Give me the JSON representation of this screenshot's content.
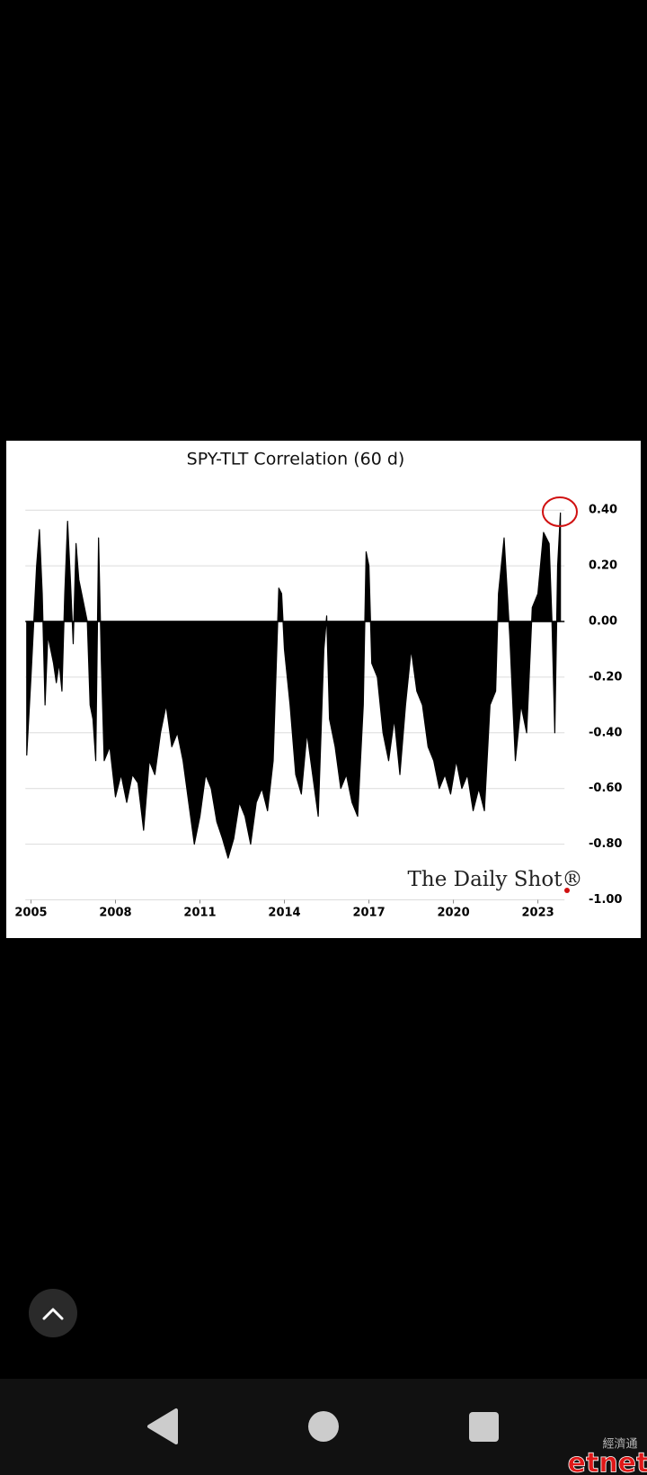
{
  "chart_data": {
    "type": "area",
    "title": "SPY-TLT Correlation (60 d)",
    "watermark": "The Daily Shot®",
    "color": "#000000",
    "grid": true,
    "x": [
      2004.85,
      2005.0,
      2005.1,
      2005.2,
      2005.3,
      2005.4,
      2005.5,
      2005.6,
      2005.7,
      2005.8,
      2005.9,
      2006.0,
      2006.1,
      2006.2,
      2006.3,
      2006.4,
      2006.5,
      2006.6,
      2006.7,
      2006.8,
      2006.9,
      2007.0,
      2007.1,
      2007.2,
      2007.3,
      2007.4,
      2007.5,
      2007.6,
      2007.8,
      2008.0,
      2008.2,
      2008.4,
      2008.6,
      2008.8,
      2009.0,
      2009.2,
      2009.4,
      2009.6,
      2009.8,
      2010.0,
      2010.2,
      2010.4,
      2010.6,
      2010.8,
      2011.0,
      2011.2,
      2011.4,
      2011.6,
      2011.8,
      2012.0,
      2012.2,
      2012.4,
      2012.6,
      2012.8,
      2013.0,
      2013.2,
      2013.4,
      2013.6,
      2013.8,
      2013.9,
      2014.0,
      2014.2,
      2014.4,
      2014.6,
      2014.8,
      2015.0,
      2015.2,
      2015.4,
      2015.5,
      2015.6,
      2015.8,
      2016.0,
      2016.2,
      2016.4,
      2016.6,
      2016.8,
      2016.9,
      2017.0,
      2017.1,
      2017.3,
      2017.5,
      2017.7,
      2017.9,
      2018.1,
      2018.3,
      2018.5,
      2018.7,
      2018.9,
      2019.1,
      2019.3,
      2019.5,
      2019.7,
      2019.9,
      2020.1,
      2020.3,
      2020.5,
      2020.7,
      2020.9,
      2021.1,
      2021.3,
      2021.5,
      2021.6,
      2021.8,
      2022.0,
      2022.2,
      2022.4,
      2022.6,
      2022.8,
      2023.0,
      2023.2,
      2023.4,
      2023.5,
      2023.6,
      2023.7,
      2023.8
    ],
    "values": [
      -0.48,
      -0.2,
      0.0,
      0.2,
      0.33,
      0.1,
      -0.3,
      -0.05,
      -0.1,
      -0.15,
      -0.22,
      -0.15,
      -0.25,
      0.1,
      0.36,
      0.15,
      -0.08,
      0.28,
      0.15,
      0.1,
      0.05,
      0.0,
      -0.3,
      -0.35,
      -0.5,
      0.3,
      -0.15,
      -0.5,
      -0.45,
      -0.63,
      -0.55,
      -0.65,
      -0.55,
      -0.58,
      -0.75,
      -0.5,
      -0.55,
      -0.4,
      -0.3,
      -0.45,
      -0.4,
      -0.5,
      -0.65,
      -0.8,
      -0.7,
      -0.55,
      -0.6,
      -0.72,
      -0.78,
      -0.85,
      -0.78,
      -0.65,
      -0.7,
      -0.8,
      -0.65,
      -0.6,
      -0.68,
      -0.5,
      0.12,
      0.1,
      -0.1,
      -0.3,
      -0.55,
      -0.62,
      -0.4,
      -0.55,
      -0.7,
      -0.1,
      0.02,
      -0.35,
      -0.45,
      -0.6,
      -0.55,
      -0.65,
      -0.7,
      -0.3,
      0.25,
      0.2,
      -0.15,
      -0.2,
      -0.4,
      -0.5,
      -0.35,
      -0.55,
      -0.3,
      -0.1,
      -0.25,
      -0.3,
      -0.45,
      -0.5,
      -0.6,
      -0.55,
      -0.62,
      -0.5,
      -0.6,
      -0.55,
      -0.68,
      -0.6,
      -0.68,
      -0.3,
      -0.25,
      0.1,
      0.3,
      -0.05,
      -0.5,
      -0.3,
      -0.4,
      0.05,
      0.1,
      0.32,
      0.28,
      0.0,
      -0.4,
      0.2,
      0.39
    ],
    "xlim": [
      2004.8,
      2024.2
    ],
    "xticks": [
      2005,
      2008,
      2011,
      2014,
      2017,
      2020,
      2023
    ],
    "ylim": [
      -1,
      0.4
    ],
    "yticks": [
      {
        "value": 0.4,
        "label": "0.40"
      },
      {
        "value": 0.2,
        "label": "0.20"
      },
      {
        "value": 0,
        "label": "0.00"
      },
      {
        "value": -0.2,
        "label": "-0.20"
      },
      {
        "value": -0.4,
        "label": "-0.40"
      },
      {
        "value": -0.6,
        "label": "-0.60"
      },
      {
        "value": -0.8,
        "label": "-0.80"
      },
      {
        "value": -1,
        "label": "-1.00"
      }
    ]
  },
  "logo": {
    "brand": "etnet",
    "chinese": "經濟通"
  }
}
